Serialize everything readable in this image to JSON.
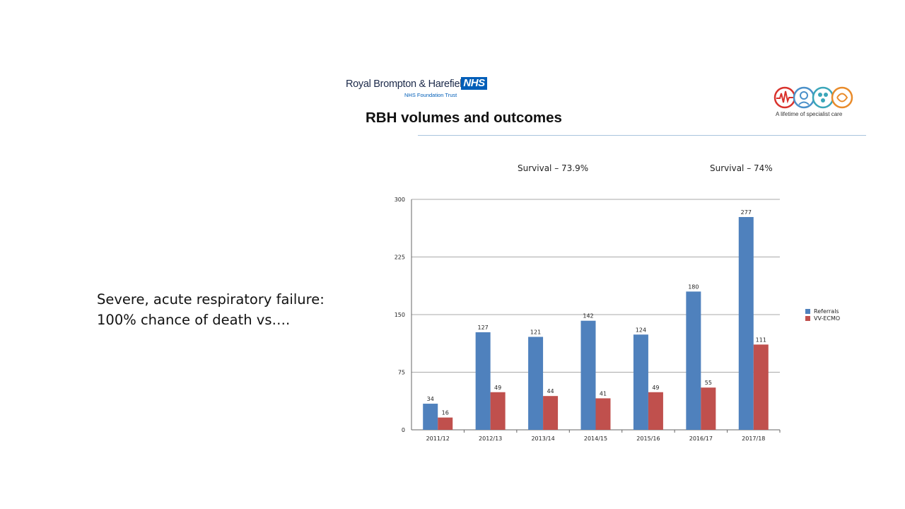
{
  "header": {
    "org_name": "Royal Brompton & Harefield",
    "nhs_badge": "NHS",
    "org_subtitle": "NHS Foundation Trust",
    "tagline": "A lifetime of specialist care"
  },
  "title": "RBH volumes and outcomes",
  "body": {
    "line1": "Severe, acute respiratory failure:",
    "line2": "100% chance of death vs…."
  },
  "annotations": {
    "survival_1": "Survival – 73.9%",
    "survival_2": "Survival – 74%"
  },
  "colors": {
    "referrals": "#4f81bd",
    "vv_ecmo": "#c0504d",
    "nhs_blue": "#005eb8"
  },
  "chart_data": {
    "type": "bar",
    "categories": [
      "2011/12",
      "2012/13",
      "2013/14",
      "2014/15",
      "2015/16",
      "2016/17",
      "2017/18"
    ],
    "series": [
      {
        "name": "Referrals",
        "values": [
          34,
          127,
          121,
          142,
          124,
          180,
          277
        ]
      },
      {
        "name": "VV-ECMO",
        "values": [
          16,
          49,
          44,
          41,
          49,
          55,
          111
        ]
      }
    ],
    "ylim": [
      0,
      300
    ],
    "yticks": [
      0,
      75,
      150,
      225,
      300
    ],
    "grid": true,
    "legend_position": "right",
    "data_labels": true
  }
}
